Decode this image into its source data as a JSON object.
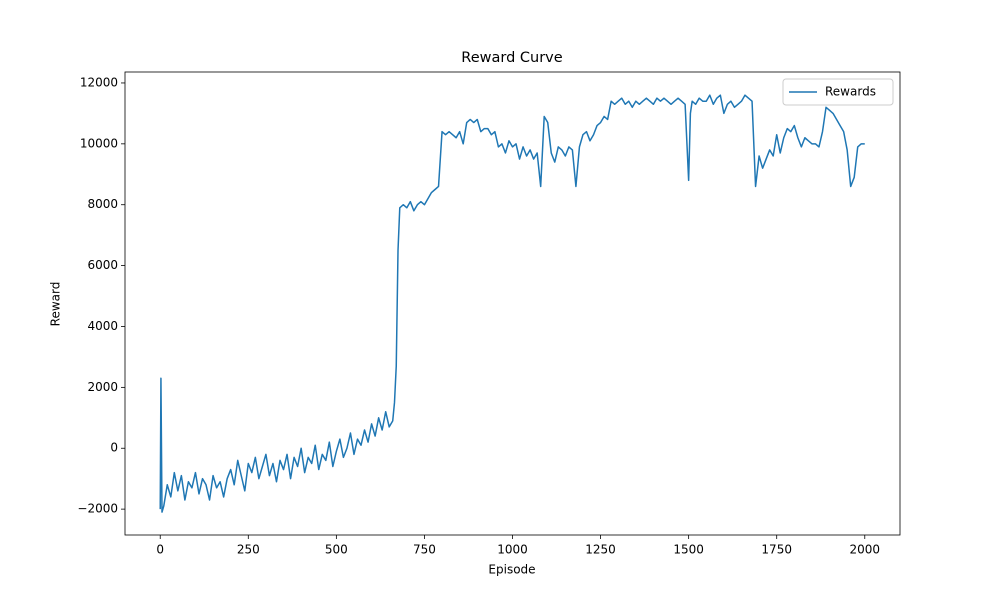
{
  "chart_data": {
    "type": "line",
    "title": "Reward Curve",
    "x_label": "Episode",
    "y_label": "Reward",
    "legend": "upper right",
    "grid": false,
    "xlim": [
      -100,
      2100
    ],
    "ylim": [
      -2850,
      12360
    ],
    "xticks": [
      0,
      250,
      500,
      750,
      1000,
      1250,
      1500,
      1750,
      2000
    ],
    "yticks": [
      {
        "value": -2000,
        "label": "−2000"
      },
      0,
      2000,
      4000,
      6000,
      8000,
      10000,
      12000
    ],
    "x": [
      0,
      2,
      5,
      10,
      20,
      30,
      40,
      50,
      60,
      70,
      80,
      90,
      100,
      110,
      120,
      130,
      140,
      150,
      160,
      170,
      180,
      190,
      200,
      210,
      220,
      230,
      240,
      250,
      260,
      270,
      280,
      290,
      300,
      310,
      320,
      330,
      340,
      350,
      360,
      370,
      380,
      390,
      400,
      410,
      420,
      430,
      440,
      450,
      460,
      470,
      480,
      490,
      500,
      510,
      520,
      530,
      540,
      550,
      560,
      570,
      580,
      590,
      600,
      610,
      620,
      630,
      640,
      650,
      660,
      665,
      670,
      675,
      680,
      690,
      700,
      710,
      720,
      730,
      740,
      750,
      760,
      770,
      780,
      790,
      800,
      810,
      820,
      830,
      840,
      850,
      860,
      870,
      880,
      890,
      900,
      910,
      920,
      930,
      940,
      950,
      960,
      970,
      980,
      990,
      1000,
      1010,
      1020,
      1030,
      1040,
      1050,
      1060,
      1070,
      1080,
      1090,
      1100,
      1110,
      1120,
      1130,
      1140,
      1150,
      1160,
      1170,
      1180,
      1190,
      1200,
      1210,
      1220,
      1230,
      1240,
      1250,
      1260,
      1270,
      1280,
      1290,
      1300,
      1310,
      1320,
      1330,
      1340,
      1350,
      1360,
      1370,
      1380,
      1390,
      1400,
      1410,
      1420,
      1430,
      1440,
      1450,
      1460,
      1470,
      1480,
      1490,
      1500,
      1505,
      1510,
      1520,
      1530,
      1540,
      1550,
      1560,
      1570,
      1580,
      1590,
      1600,
      1610,
      1620,
      1630,
      1640,
      1650,
      1660,
      1670,
      1680,
      1690,
      1700,
      1710,
      1720,
      1730,
      1740,
      1750,
      1760,
      1770,
      1780,
      1790,
      1800,
      1810,
      1820,
      1830,
      1840,
      1850,
      1860,
      1870,
      1880,
      1890,
      1900,
      1910,
      1920,
      1930,
      1940,
      1950,
      1960,
      1970,
      1980,
      1990,
      2000
    ],
    "series": [
      {
        "name": "Rewards",
        "color": "#1f77b4",
        "values": [
          -2000,
          2300,
          -2100,
          -1900,
          -1200,
          -1600,
          -800,
          -1400,
          -900,
          -1700,
          -1100,
          -1300,
          -800,
          -1500,
          -1000,
          -1200,
          -1700,
          -900,
          -1300,
          -1100,
          -1600,
          -1000,
          -700,
          -1200,
          -400,
          -900,
          -1400,
          -500,
          -800,
          -300,
          -1000,
          -600,
          -200,
          -900,
          -500,
          -1100,
          -400,
          -700,
          -200,
          -1000,
          -300,
          -600,
          0,
          -800,
          -300,
          -500,
          100,
          -700,
          -200,
          -400,
          200,
          -600,
          -100,
          300,
          -300,
          0,
          500,
          -200,
          300,
          100,
          600,
          200,
          800,
          400,
          1000,
          600,
          1200,
          700,
          900,
          1500,
          2700,
          6500,
          7900,
          8000,
          7900,
          8100,
          7800,
          8000,
          8100,
          8000,
          8200,
          8400,
          8500,
          8600,
          10400,
          10300,
          10400,
          10300,
          10200,
          10400,
          10000,
          10700,
          10800,
          10700,
          10800,
          10400,
          10500,
          10500,
          10300,
          10400,
          9900,
          10000,
          9700,
          10100,
          9900,
          10000,
          9500,
          9900,
          9600,
          9800,
          9500,
          9700,
          8600,
          10900,
          10700,
          9700,
          9400,
          9900,
          9800,
          9600,
          9900,
          9800,
          8600,
          9900,
          10300,
          10400,
          10100,
          10300,
          10600,
          10700,
          10900,
          10800,
          11400,
          11300,
          11400,
          11500,
          11300,
          11400,
          11200,
          11400,
          11300,
          11400,
          11500,
          11400,
          11300,
          11500,
          11400,
          11500,
          11400,
          11300,
          11400,
          11500,
          11400,
          11300,
          8800,
          11000,
          11400,
          11300,
          11500,
          11400,
          11400,
          11600,
          11300,
          11500,
          11600,
          11000,
          11300,
          11400,
          11200,
          11300,
          11400,
          11600,
          11500,
          11400,
          8600,
          9600,
          9200,
          9500,
          9800,
          9600,
          10300,
          9700,
          10200,
          10500,
          10400,
          10600,
          10200,
          9900,
          10200,
          10100,
          10000,
          10000,
          9900,
          10400,
          11200,
          11100,
          11000,
          10800,
          10600,
          10400,
          9800,
          8600,
          8900,
          9900,
          10000,
          10000
        ]
      }
    ]
  }
}
